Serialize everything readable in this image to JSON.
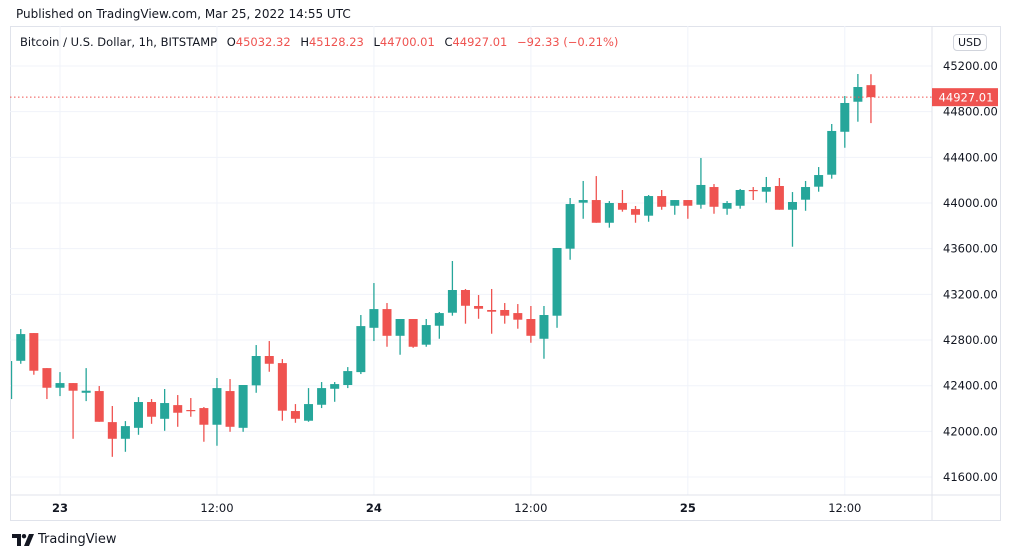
{
  "published": "Published on TradingView.com, Mar 25, 2022 14:55 UTC",
  "legend": {
    "symbol": "Bitcoin / U.S. Dollar, 1h, BITSTAMP",
    "o_label": "O",
    "o": "45032.32",
    "h_label": "H",
    "h": "45128.23",
    "l_label": "L",
    "l": "44700.01",
    "c_label": "C",
    "c": "44927.01",
    "change": "−92.33 (−0.21%)"
  },
  "currency_button": "USD",
  "footer": {
    "brand": "TradingView",
    "logo_icon": "tradingview-logo-icon"
  },
  "colors": {
    "up": "#26a69a",
    "down": "#ef5350",
    "grid": "#f0f3fa",
    "last_price": "#ef5350"
  },
  "chart_data": {
    "type": "candlestick",
    "symbol": "BTCUSD",
    "interval": "1h",
    "ylim": [
      41400,
      45500
    ],
    "grid": true,
    "y_ticks": [
      "41600.00",
      "42000.00",
      "42400.00",
      "42800.00",
      "43200.00",
      "43600.00",
      "44000.00",
      "44400.00",
      "44800.00",
      "45200.00"
    ],
    "x_ticks": [
      {
        "label": "23",
        "time": "03-23 00:00"
      },
      {
        "label": "12:00",
        "time": "03-23 12:00"
      },
      {
        "label": "24",
        "time": "03-24 00:00"
      },
      {
        "label": "12:00",
        "time": "03-24 12:00"
      },
      {
        "label": "25",
        "time": "03-25 00:00"
      },
      {
        "label": "12:00",
        "time": "03-25 12:00"
      }
    ],
    "last_price": "44927.01",
    "candles": [
      [
        "03-22 20:00",
        42283,
        42620,
        42280,
        42616
      ],
      [
        "03-22 21:00",
        42618,
        42896,
        42592,
        42852
      ],
      [
        "03-22 22:00",
        42861,
        42861,
        42496,
        42531
      ],
      [
        "03-22 23:00",
        42554,
        42554,
        42283,
        42382
      ],
      [
        "03-23 00:00",
        42382,
        42519,
        42309,
        42423
      ],
      [
        "03-23 01:00",
        42423,
        42423,
        41935,
        42356
      ],
      [
        "03-23 02:00",
        42338,
        42554,
        42265,
        42356
      ],
      [
        "03-23 03:00",
        42353,
        42397,
        42084,
        42084
      ],
      [
        "03-23 04:00",
        42081,
        42222,
        41777,
        41935
      ],
      [
        "03-23 05:00",
        41935,
        42090,
        41821,
        42046
      ],
      [
        "03-23 06:00",
        42031,
        42300,
        41970,
        42257
      ],
      [
        "03-23 07:00",
        42257,
        42283,
        42066,
        42128
      ],
      [
        "03-23 08:00",
        42110,
        42371,
        42005,
        42248
      ],
      [
        "03-23 09:00",
        42230,
        42318,
        42040,
        42163
      ],
      [
        "03-23 10:00",
        42187,
        42292,
        42128,
        42181
      ],
      [
        "03-23 11:00",
        42204,
        42213,
        41909,
        42058
      ],
      [
        "03-23 12:00",
        42058,
        42467,
        41874,
        42379
      ],
      [
        "03-23 13:00",
        42353,
        42458,
        41996,
        42040
      ],
      [
        "03-23 14:00",
        42031,
        42406,
        41996,
        42406
      ],
      [
        "03-23 15:00",
        42403,
        42756,
        42338,
        42660
      ],
      [
        "03-23 16:00",
        42660,
        42791,
        42522,
        42592
      ],
      [
        "03-23 17:00",
        42598,
        42633,
        42093,
        42181
      ],
      [
        "03-23 18:00",
        42178,
        42239,
        42075,
        42110
      ],
      [
        "03-23 19:00",
        42093,
        42379,
        42084,
        42239
      ],
      [
        "03-23 20:00",
        42233,
        42432,
        42204,
        42379
      ],
      [
        "03-23 21:00",
        42373,
        42432,
        42259,
        42414
      ],
      [
        "03-23 22:00",
        42406,
        42563,
        42379,
        42528
      ],
      [
        "03-23 23:00",
        42519,
        43019,
        42502,
        42922
      ],
      [
        "03-24 00:00",
        42907,
        43299,
        42791,
        43071
      ],
      [
        "03-24 01:00",
        43071,
        43124,
        42741,
        42837
      ],
      [
        "03-24 02:00",
        42837,
        42984,
        42671,
        42984
      ],
      [
        "03-24 03:00",
        42984,
        42984,
        42732,
        42741
      ],
      [
        "03-24 04:00",
        42759,
        42984,
        42741,
        42931
      ],
      [
        "03-24 05:00",
        42925,
        43045,
        42811,
        43036
      ],
      [
        "03-24 06:00",
        43039,
        43492,
        43013,
        43238
      ],
      [
        "03-24 07:00",
        43238,
        43247,
        42943,
        43100
      ],
      [
        "03-24 08:00",
        43098,
        43194,
        42986,
        43074
      ],
      [
        "03-24 09:00",
        43063,
        43247,
        42855,
        43048
      ],
      [
        "03-24 10:00",
        43063,
        43124,
        42943,
        43013
      ],
      [
        "03-24 11:00",
        43036,
        43115,
        42899,
        42978
      ],
      [
        "03-24 12:00",
        42984,
        43098,
        42776,
        42837
      ],
      [
        "03-24 13:00",
        42811,
        43098,
        42636,
        43019
      ],
      [
        "03-24 14:00",
        43013,
        43606,
        42907,
        43606
      ],
      [
        "03-24 15:00",
        43600,
        44044,
        43503,
        43991
      ],
      [
        "03-24 16:00",
        44003,
        44193,
        43862,
        44026
      ],
      [
        "03-24 17:00",
        44026,
        44236,
        43827,
        43827
      ],
      [
        "03-24 18:00",
        43827,
        44017,
        43784,
        44000
      ],
      [
        "03-24 19:00",
        44000,
        44114,
        43924,
        43941
      ],
      [
        "03-24 20:00",
        43947,
        43974,
        43827,
        43897
      ],
      [
        "03-24 21:00",
        43889,
        44070,
        43836,
        44061
      ],
      [
        "03-24 22:00",
        44061,
        44114,
        43941,
        43967
      ],
      [
        "03-24 23:00",
        43976,
        44026,
        43897,
        44026
      ],
      [
        "03-25 00:00",
        44026,
        44026,
        43862,
        43976
      ],
      [
        "03-25 01:00",
        43985,
        44394,
        43950,
        44158
      ],
      [
        "03-25 02:00",
        44140,
        44166,
        43906,
        43967
      ],
      [
        "03-25 03:00",
        43950,
        44017,
        43897,
        44000
      ],
      [
        "03-25 04:00",
        43976,
        44123,
        43950,
        44114
      ],
      [
        "03-25 05:00",
        44114,
        44140,
        44026,
        44108
      ],
      [
        "03-25 06:00",
        44099,
        44228,
        44003,
        44140
      ],
      [
        "03-25 07:00",
        44149,
        44219,
        43941,
        43941
      ],
      [
        "03-25 08:00",
        43941,
        44096,
        43617,
        44009
      ],
      [
        "03-25 09:00",
        44029,
        44193,
        43932,
        44140
      ],
      [
        "03-25 10:00",
        44143,
        44315,
        44099,
        44245
      ],
      [
        "03-25 11:00",
        44248,
        44692,
        44213,
        44631
      ],
      [
        "03-25 12:00",
        44624,
        44937,
        44484,
        44876
      ],
      [
        "03-25 13:00",
        44887,
        45130,
        44712,
        45016
      ],
      [
        "03-25 14:00",
        45032.32,
        45128.23,
        44700.01,
        44927.01
      ]
    ]
  }
}
